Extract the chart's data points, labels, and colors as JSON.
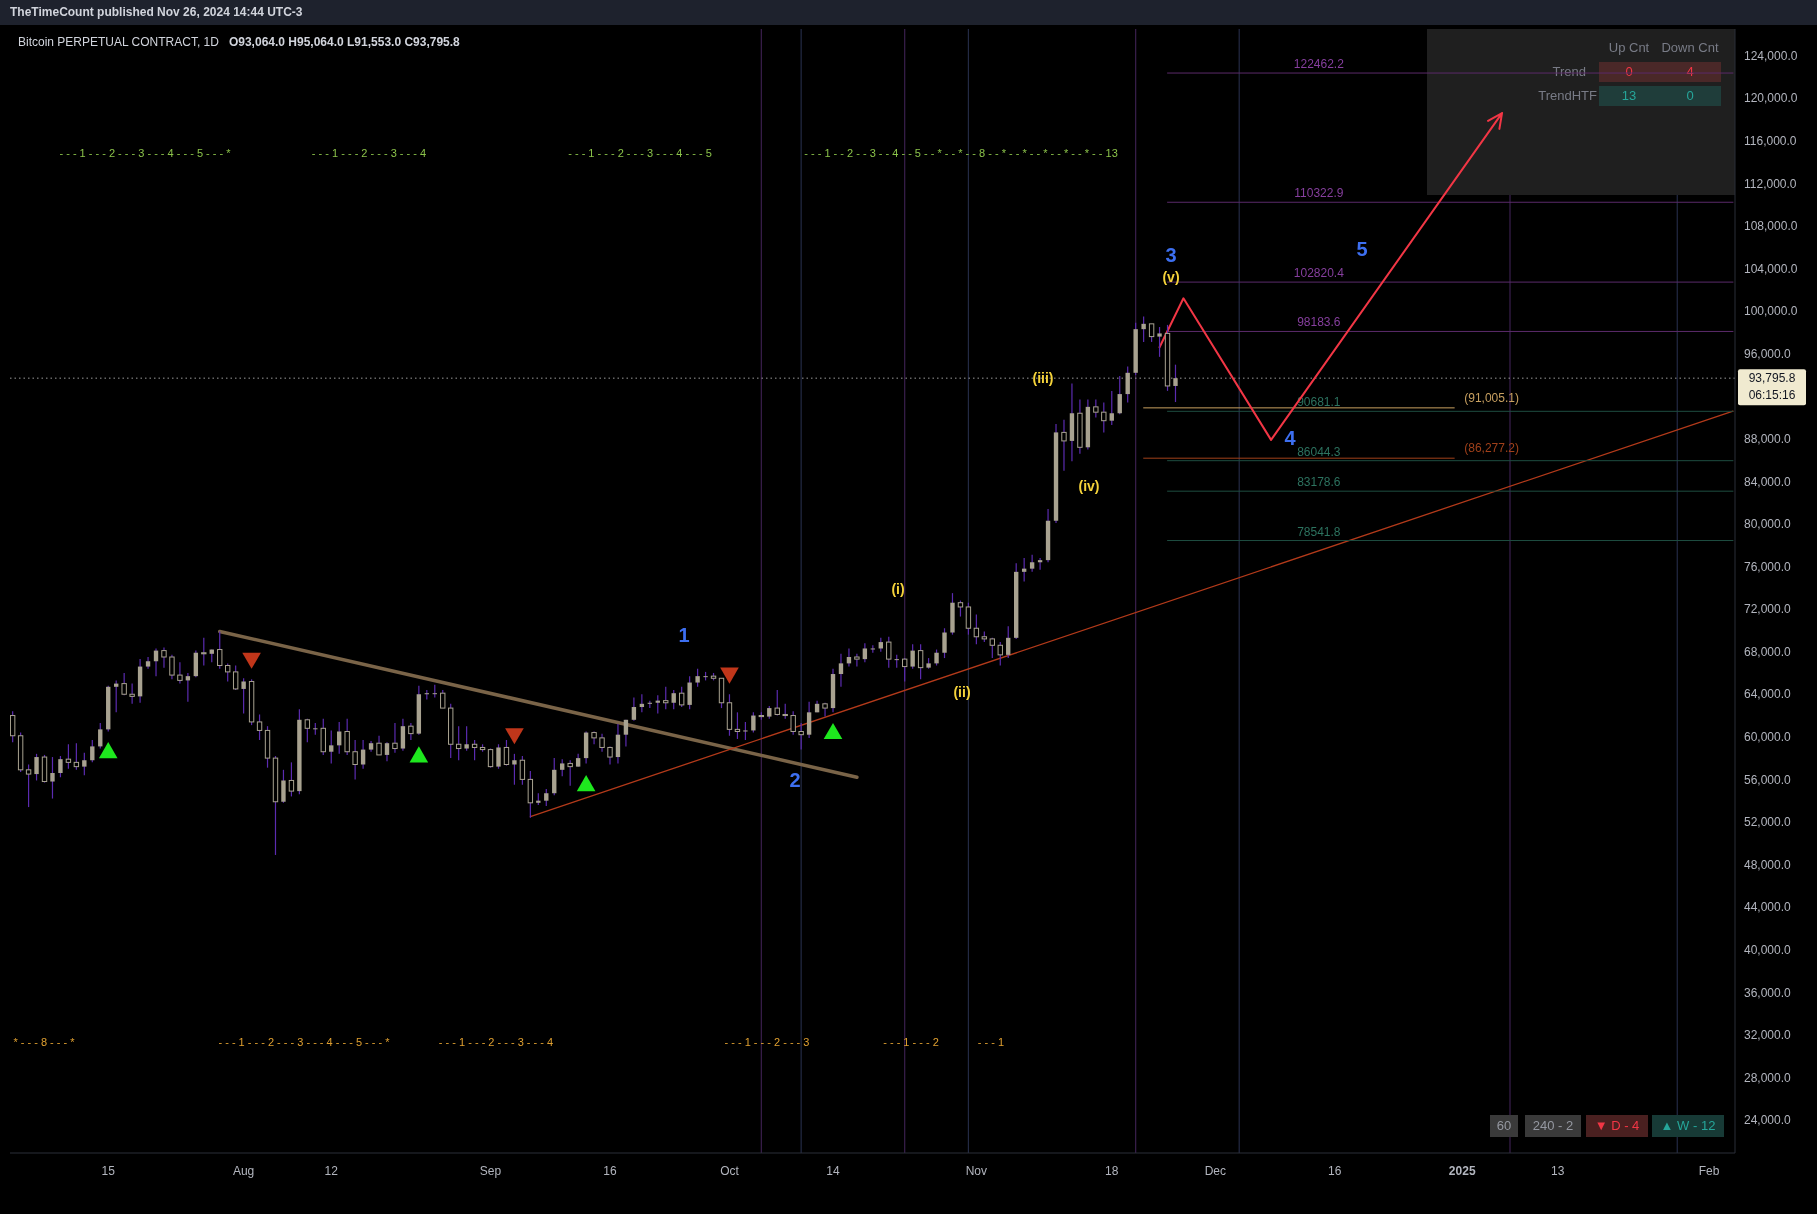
{
  "chart_data": {
    "type": "candlestick",
    "title": "Bitcoin PERPETUAL CONTRACT, 1D",
    "subtitle": "O93,064.0  H95,064.0  L91,553.0  C93,795.8",
    "color": "#a8a290",
    "xlim": [
      "2024-07-02T16:00",
      "2025-02-04T06:00"
    ],
    "ylim": [
      21000,
      126600
    ],
    "xticks": [
      {
        "value": "2024-07-15",
        "label": "15"
      },
      {
        "value": "2024-08-01",
        "label": "Aug"
      },
      {
        "value": "2024-08-12",
        "label": "12"
      },
      {
        "value": "2024-09-01",
        "label": "Sep"
      },
      {
        "value": "2024-09-16",
        "label": "16"
      },
      {
        "value": "2024-10-01",
        "label": "Oct"
      },
      {
        "value": "2024-10-14",
        "label": "14"
      },
      {
        "value": "2024-11-01",
        "label": "Nov"
      },
      {
        "value": "2024-11-18",
        "label": "18"
      },
      {
        "value": "2024-12-01",
        "label": "Dec"
      },
      {
        "value": "2024-12-16",
        "label": "16"
      },
      {
        "value": "2025-01-01",
        "label": "2025"
      },
      {
        "value": "2025-01-13",
        "label": "13"
      },
      {
        "value": "2025-02-01",
        "label": "Feb"
      }
    ],
    "yticks": [
      {
        "value": 24000,
        "label": "24,000.0"
      },
      {
        "value": 28000,
        "label": "28,000.0"
      },
      {
        "value": 32000,
        "label": "32,000.0"
      },
      {
        "value": 36000,
        "label": "36,000.0"
      },
      {
        "value": 40000,
        "label": "40,000.0"
      },
      {
        "value": 44000,
        "label": "44,000.0"
      },
      {
        "value": 48000,
        "label": "48,000.0"
      },
      {
        "value": 52000,
        "label": "52,000.0"
      },
      {
        "value": 56000,
        "label": "56,000.0"
      },
      {
        "value": 60000,
        "label": "60,000.0"
      },
      {
        "value": 64000,
        "label": "64,000.0"
      },
      {
        "value": 68000,
        "label": "68,000.0"
      },
      {
        "value": 72000,
        "label": "72,000.0"
      },
      {
        "value": 76000,
        "label": "76,000.0"
      },
      {
        "value": 80000,
        "label": "80,000.0"
      },
      {
        "value": 84000,
        "label": "84,000.0"
      },
      {
        "value": 88000,
        "label": "88,000.0"
      },
      {
        "value": 96000,
        "label": "96,000.0"
      },
      {
        "value": 100000,
        "label": "100,000.0"
      },
      {
        "value": 104000,
        "label": "104,000.0"
      },
      {
        "value": 108000,
        "label": "108,000.0"
      },
      {
        "value": 112000,
        "label": "112,000.0"
      },
      {
        "value": 116000,
        "label": "116,000.0"
      },
      {
        "value": 120000,
        "label": "120,000.0"
      },
      {
        "value": 124000,
        "label": "124,000.0"
      }
    ],
    "x": [
      "2024-07-03",
      "2024-07-04",
      "2024-07-05",
      "2024-07-06",
      "2024-07-07",
      "2024-07-08",
      "2024-07-09",
      "2024-07-10",
      "2024-07-11",
      "2024-07-12",
      "2024-07-13",
      "2024-07-14",
      "2024-07-15",
      "2024-07-16",
      "2024-07-17",
      "2024-07-18",
      "2024-07-19",
      "2024-07-20",
      "2024-07-21",
      "2024-07-22",
      "2024-07-23",
      "2024-07-24",
      "2024-07-25",
      "2024-07-26",
      "2024-07-27",
      "2024-07-28",
      "2024-07-29",
      "2024-07-30",
      "2024-07-31",
      "2024-08-01",
      "2024-08-02",
      "2024-08-03",
      "2024-08-04",
      "2024-08-05",
      "2024-08-06",
      "2024-08-07",
      "2024-08-08",
      "2024-08-09",
      "2024-08-10",
      "2024-08-11",
      "2024-08-12",
      "2024-08-13",
      "2024-08-14",
      "2024-08-15",
      "2024-08-16",
      "2024-08-17",
      "2024-08-18",
      "2024-08-19",
      "2024-08-20",
      "2024-08-21",
      "2024-08-22",
      "2024-08-23",
      "2024-08-24",
      "2024-08-25",
      "2024-08-26",
      "2024-08-27",
      "2024-08-28",
      "2024-08-29",
      "2024-08-30",
      "2024-08-31",
      "2024-09-01",
      "2024-09-02",
      "2024-09-03",
      "2024-09-04",
      "2024-09-05",
      "2024-09-06",
      "2024-09-07",
      "2024-09-08",
      "2024-09-09",
      "2024-09-10",
      "2024-09-11",
      "2024-09-12",
      "2024-09-13",
      "2024-09-14",
      "2024-09-15",
      "2024-09-16",
      "2024-09-17",
      "2024-09-18",
      "2024-09-19",
      "2024-09-20",
      "2024-09-21",
      "2024-09-22",
      "2024-09-23",
      "2024-09-24",
      "2024-09-25",
      "2024-09-26",
      "2024-09-27",
      "2024-09-28",
      "2024-09-29",
      "2024-09-30",
      "2024-10-01",
      "2024-10-02",
      "2024-10-03",
      "2024-10-04",
      "2024-10-05",
      "2024-10-06",
      "2024-10-07",
      "2024-10-08",
      "2024-10-09",
      "2024-10-10",
      "2024-10-11",
      "2024-10-12",
      "2024-10-13",
      "2024-10-14",
      "2024-10-15",
      "2024-10-16",
      "2024-10-17",
      "2024-10-18",
      "2024-10-19",
      "2024-10-20",
      "2024-10-21",
      "2024-10-22",
      "2024-10-23",
      "2024-10-24",
      "2024-10-25",
      "2024-10-26",
      "2024-10-27",
      "2024-10-28",
      "2024-10-29",
      "2024-10-30",
      "2024-10-31",
      "2024-11-01",
      "2024-11-02",
      "2024-11-03",
      "2024-11-04",
      "2024-11-05",
      "2024-11-06",
      "2024-11-07",
      "2024-11-08",
      "2024-11-09",
      "2024-11-10",
      "2024-11-11",
      "2024-11-12",
      "2024-11-13",
      "2024-11-14",
      "2024-11-15",
      "2024-11-16",
      "2024-11-17",
      "2024-11-18",
      "2024-11-19",
      "2024-11-20",
      "2024-11-21",
      "2024-11-22",
      "2024-11-23",
      "2024-11-24",
      "2024-11-25",
      "2024-11-26"
    ],
    "ohlc": [
      [
        62100,
        62500,
        59600,
        60200
      ],
      [
        60200,
        60500,
        56800,
        57000
      ],
      [
        57000,
        57500,
        53500,
        56600
      ],
      [
        56600,
        58500,
        56000,
        58200
      ],
      [
        58200,
        58400,
        55800,
        55900
      ],
      [
        55900,
        58200,
        54300,
        56700
      ],
      [
        56700,
        58300,
        56300,
        58000
      ],
      [
        58000,
        59400,
        57100,
        57700
      ],
      [
        57700,
        59500,
        57000,
        57300
      ],
      [
        57300,
        58600,
        56500,
        57900
      ],
      [
        57900,
        59800,
        57700,
        59200
      ],
      [
        59200,
        61400,
        59000,
        60800
      ],
      [
        60800,
        64900,
        60600,
        64800
      ],
      [
        64800,
        65400,
        62400,
        65100
      ],
      [
        65100,
        66100,
        64000,
        64100
      ],
      [
        64100,
        65100,
        63200,
        63900
      ],
      [
        63900,
        67400,
        63300,
        66700
      ],
      [
        66700,
        67600,
        66500,
        67200
      ],
      [
        67200,
        68400,
        65800,
        68200
      ],
      [
        68200,
        68500,
        66600,
        67600
      ],
      [
        67600,
        67800,
        65500,
        65900
      ],
      [
        65900,
        67100,
        65100,
        65400
      ],
      [
        65400,
        66100,
        63400,
        65800
      ],
      [
        65800,
        68200,
        65700,
        68000
      ],
      [
        68000,
        69400,
        66800,
        67900
      ],
      [
        67900,
        68300,
        67100,
        68300
      ],
      [
        68300,
        70000,
        66500,
        66800
      ],
      [
        66800,
        67000,
        65300,
        66200
      ],
      [
        66200,
        66800,
        64500,
        64600
      ],
      [
        64600,
        65600,
        62300,
        65300
      ],
      [
        65300,
        65500,
        61200,
        61500
      ],
      [
        61500,
        62200,
        59800,
        60700
      ],
      [
        60700,
        61100,
        57200,
        58100
      ],
      [
        58100,
        58300,
        49000,
        54000
      ],
      [
        54000,
        57000,
        53900,
        56000
      ],
      [
        56000,
        57700,
        54500,
        55000
      ],
      [
        55000,
        62700,
        54700,
        61700
      ],
      [
        61700,
        61800,
        59600,
        60900
      ],
      [
        60900,
        61400,
        60300,
        60900
      ],
      [
        60900,
        61800,
        58400,
        58700
      ],
      [
        58700,
        60700,
        57600,
        59300
      ],
      [
        59300,
        61500,
        58500,
        60600
      ],
      [
        60600,
        61800,
        58400,
        58700
      ],
      [
        58700,
        59800,
        56100,
        57500
      ],
      [
        57500,
        59800,
        57100,
        58900
      ],
      [
        58900,
        59700,
        58700,
        59500
      ],
      [
        59500,
        60200,
        58400,
        58400
      ],
      [
        58400,
        59600,
        57800,
        59500
      ],
      [
        59500,
        61400,
        58600,
        59000
      ],
      [
        59000,
        61800,
        58800,
        61100
      ],
      [
        61100,
        61400,
        59800,
        60400
      ],
      [
        60400,
        64900,
        60300,
        64100
      ],
      [
        64100,
        64500,
        63600,
        64200
      ],
      [
        64200,
        65000,
        63800,
        64200
      ],
      [
        64200,
        64500,
        62800,
        62800
      ],
      [
        62800,
        63200,
        58100,
        59400
      ],
      [
        59400,
        61100,
        57900,
        59000
      ],
      [
        59000,
        61100,
        58800,
        59400
      ],
      [
        59400,
        59800,
        57900,
        59100
      ],
      [
        59100,
        59400,
        58700,
        58900
      ],
      [
        58900,
        59000,
        57200,
        57300
      ],
      [
        57300,
        59400,
        57100,
        59100
      ],
      [
        59100,
        59800,
        57400,
        57500
      ],
      [
        57500,
        58500,
        55600,
        57900
      ],
      [
        57900,
        58300,
        55600,
        56100
      ],
      [
        56100,
        56900,
        52500,
        53900
      ],
      [
        53900,
        54800,
        53700,
        54100
      ],
      [
        54100,
        55200,
        53600,
        54800
      ],
      [
        54800,
        58100,
        54600,
        57000
      ],
      [
        57000,
        58000,
        56400,
        57600
      ],
      [
        57600,
        57900,
        55500,
        57300
      ],
      [
        57300,
        58500,
        57300,
        58100
      ],
      [
        58100,
        60600,
        57600,
        60500
      ],
      [
        60500,
        60600,
        59400,
        60000
      ],
      [
        60000,
        60400,
        58700,
        59100
      ],
      [
        59100,
        59200,
        57500,
        58200
      ],
      [
        58200,
        61300,
        57600,
        60300
      ],
      [
        60300,
        61700,
        59200,
        61700
      ],
      [
        61700,
        63800,
        61600,
        62900
      ],
      [
        62900,
        64100,
        62400,
        63200
      ],
      [
        63200,
        63500,
        62800,
        63300
      ],
      [
        63300,
        64000,
        62300,
        63500
      ],
      [
        63500,
        64800,
        62700,
        63300
      ],
      [
        63300,
        64500,
        62700,
        64200
      ],
      [
        64200,
        64800,
        62900,
        63100
      ],
      [
        63100,
        65800,
        62700,
        65200
      ],
      [
        65200,
        66500,
        64800,
        65800
      ],
      [
        65800,
        66200,
        65400,
        65800
      ],
      [
        65800,
        66100,
        65400,
        65600
      ],
      [
        65600,
        65600,
        62800,
        63300
      ],
      [
        63300,
        64100,
        60200,
        60800
      ],
      [
        60800,
        62400,
        59900,
        60600
      ],
      [
        60600,
        61500,
        59800,
        60700
      ],
      [
        60700,
        62400,
        60500,
        62100
      ],
      [
        62100,
        62400,
        61700,
        62000
      ],
      [
        62000,
        63000,
        61800,
        62800
      ],
      [
        62800,
        64500,
        62100,
        62200
      ],
      [
        62200,
        63200,
        61800,
        62100
      ],
      [
        62100,
        62500,
        60300,
        60600
      ],
      [
        60600,
        61400,
        58900,
        60300
      ],
      [
        60300,
        63400,
        60000,
        62400
      ],
      [
        62400,
        63500,
        62400,
        63200
      ],
      [
        63200,
        63300,
        62000,
        62800
      ],
      [
        62800,
        66500,
        62400,
        66000
      ],
      [
        66000,
        67900,
        64800,
        67000
      ],
      [
        67000,
        68400,
        66700,
        67600
      ],
      [
        67600,
        67900,
        66700,
        67400
      ],
      [
        67400,
        68900,
        67100,
        68400
      ],
      [
        68400,
        68700,
        68000,
        68400
      ],
      [
        68400,
        69400,
        68100,
        69000
      ],
      [
        69000,
        69500,
        66600,
        67400
      ],
      [
        67400,
        67800,
        66600,
        67400
      ],
      [
        67400,
        67500,
        65300,
        66700
      ],
      [
        66700,
        68800,
        66500,
        68200
      ],
      [
        68200,
        68800,
        65500,
        66600
      ],
      [
        66600,
        67500,
        66500,
        67000
      ],
      [
        67000,
        68300,
        66800,
        68000
      ],
      [
        68000,
        70300,
        67500,
        69900
      ],
      [
        69900,
        73600,
        69700,
        72700
      ],
      [
        72700,
        72900,
        71400,
        72300
      ],
      [
        72300,
        72700,
        69700,
        70300
      ],
      [
        70300,
        71600,
        68800,
        69500
      ],
      [
        69500,
        70000,
        69000,
        69300
      ],
      [
        69300,
        69400,
        67500,
        68700
      ],
      [
        68700,
        69000,
        66800,
        67800
      ],
      [
        67800,
        70500,
        67500,
        69400
      ],
      [
        69400,
        76400,
        69300,
        75600
      ],
      [
        75600,
        76900,
        74700,
        75900
      ],
      [
        75900,
        77200,
        75600,
        76500
      ],
      [
        76500,
        76900,
        75800,
        76700
      ],
      [
        76700,
        81500,
        76500,
        80400
      ],
      [
        80400,
        89500,
        80200,
        88700
      ],
      [
        88700,
        89900,
        85100,
        87900
      ],
      [
        87900,
        93300,
        86000,
        90500
      ],
      [
        90500,
        91800,
        86700,
        87300
      ],
      [
        87300,
        91800,
        87100,
        91100
      ],
      [
        91100,
        91800,
        90100,
        90600
      ],
      [
        90600,
        91500,
        88700,
        89800
      ],
      [
        89800,
        92600,
        89400,
        90500
      ],
      [
        90500,
        94000,
        90400,
        92300
      ],
      [
        92300,
        94900,
        91500,
        94300
      ],
      [
        94300,
        99000,
        94100,
        98400
      ],
      [
        98400,
        99600,
        97200,
        98900
      ],
      [
        98900,
        98900,
        97200,
        97700
      ],
      [
        97700,
        98600,
        95800,
        98000
      ],
      [
        98000,
        98800,
        92600,
        93064
      ],
      [
        93064,
        95064,
        91553,
        93795.8
      ]
    ],
    "series": [
      {
        "type": "line",
        "color": "#7a6448",
        "x": [
          "2024-07-29",
          "2024-10-17"
        ],
        "values": [
          70000,
          56300
        ]
      },
      {
        "type": "line",
        "color": "#b33a1a",
        "x": [
          "2024-09-06",
          "2025-02-04"
        ],
        "values": [
          52600,
          90700
        ]
      },
      {
        "type": "line",
        "name": "122462.2",
        "color": "#5a2a6a",
        "x": [
          "2024-11-25",
          "2025-02-04"
        ],
        "values": [
          122462.2,
          122462.2
        ]
      },
      {
        "type": "line",
        "name": "110322.9",
        "color": "#5a2a6a",
        "x": [
          "2024-11-25",
          "2025-02-04"
        ],
        "values": [
          110322.9,
          110322.9
        ]
      },
      {
        "type": "line",
        "name": "102820.4",
        "color": "#5a2a6a",
        "x": [
          "2024-11-25",
          "2025-02-04"
        ],
        "values": [
          102820.4,
          102820.4
        ]
      },
      {
        "type": "line",
        "name": "98183.6",
        "color": "#5a2a6a",
        "x": [
          "2024-11-25",
          "2025-02-04"
        ],
        "values": [
          98183.6,
          98183.6
        ]
      },
      {
        "type": "line",
        "name": "90681.1",
        "color": "#1e4d40",
        "x": [
          "2024-11-25",
          "2025-02-04"
        ],
        "values": [
          90681.1,
          90681.1
        ]
      },
      {
        "type": "line",
        "name": "86044.3",
        "color": "#1e4d40",
        "x": [
          "2024-11-25",
          "2025-02-04"
        ],
        "values": [
          86044.3,
          86044.3
        ]
      },
      {
        "type": "line",
        "name": "83178.6",
        "color": "#1e4d40",
        "x": [
          "2024-11-25",
          "2025-02-04"
        ],
        "values": [
          83178.6,
          83178.6
        ]
      },
      {
        "type": "line",
        "name": "78541.8",
        "color": "#1e4d40",
        "x": [
          "2024-11-25",
          "2025-02-04"
        ],
        "values": [
          78541.8,
          78541.8
        ]
      },
      {
        "type": "line",
        "name": "(91,005.1)",
        "color": "#c8a060",
        "x": [
          "2024-11-22",
          "2024-12-31"
        ],
        "values": [
          91005.1,
          91005.1
        ]
      },
      {
        "type": "line",
        "name": "(86,277.2)",
        "color": "#a0401a",
        "x": [
          "2024-11-22",
          "2024-12-31"
        ],
        "values": [
          86277.2,
          86277.2
        ]
      },
      {
        "type": "scatter",
        "marker": "triangle",
        "color": "#1ee81e",
        "x": [
          "2024-07-15",
          "2024-08-23",
          "2024-09-13",
          "2024-10-14"
        ],
        "values": [
          58600,
          58200,
          55500,
          60400
        ]
      },
      {
        "type": "scatter",
        "marker": "triangle-down",
        "color": "#c0361a",
        "x": [
          "2024-08-02",
          "2024-09-04",
          "2024-10-01"
        ],
        "values": [
          67500,
          60400,
          66100
        ]
      }
    ],
    "ref_lines": [
      {
        "axis": "x",
        "value": "2024-10-05",
        "color": "#3a1f4d"
      },
      {
        "axis": "x",
        "value": "2024-10-23",
        "color": "#3a1f4d"
      },
      {
        "axis": "x",
        "value": "2024-11-21",
        "color": "#3a1f4d"
      },
      {
        "axis": "x",
        "value": "2025-01-07",
        "color": "#3a1f4d"
      },
      {
        "axis": "x",
        "value": "2024-10-10",
        "color": "#232a44"
      },
      {
        "axis": "x",
        "value": "2024-10-31",
        "color": "#232a44"
      },
      {
        "axis": "x",
        "value": "2024-12-04",
        "color": "#232a44"
      },
      {
        "axis": "x",
        "value": "2025-01-28",
        "color": "#232a44"
      },
      {
        "axis": "y",
        "value": 93795.8,
        "label": "93,795.8",
        "color": "#9a9a9a",
        "line_style": "dotted"
      }
    ],
    "annotations": [
      "1",
      "2",
      "3",
      "4",
      "5",
      "(i)",
      "(ii)",
      "(iii)",
      "(iv)",
      "(v)",
      "- - - 1 - - - 2 - - - 3 - - - 4 - - - 5 - - - *",
      "- - - 1 - - - 2 - - - 3 - - - 4",
      "- - - 1 - - - 2 - - - 3 - - - 4 - - - 5",
      "- - - 1 - - 2 - - 3 - - 4 - - 5 - - * - - * - - 8 - - * - - * - - * - - * - - * - - 13",
      "* - - - 8 - - - *",
      "- - - 1 - - - 2 - - - 3 - - - 4 - - - 5 - - - *",
      "- - - 1 - - - 2 - - - 3 - - - 4",
      "- - - 1 - - - 2 - - - 3",
      "- - - 1 - - - 2",
      "- - - 1",
      "TheTimeCount published Nov 26, 2024 14:44 UTC-3",
      "Up Cnt",
      "Down Cnt",
      "Trend",
      "0",
      "4",
      "TrendHTF",
      "13",
      "0",
      "60",
      "240 - 2",
      "▼ D - 4",
      "▲ W - 12",
      "06:15:16"
    ]
  }
}
